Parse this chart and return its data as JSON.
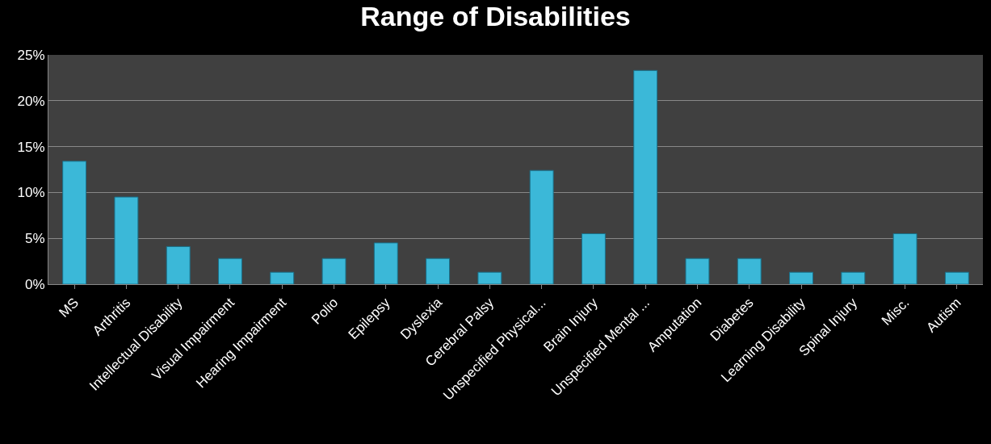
{
  "chart_data": {
    "type": "bar",
    "title": "Range of Disabilities",
    "categories": [
      "MS",
      "Arthritis",
      "Intellectual Disability",
      "Visual Impairment",
      "Hearing Impairment",
      "Polio",
      "Epilepsy",
      "Dyslexia",
      "Cerebral Palsy",
      "Unspecified Physical...",
      "Brain Injury",
      "Unspecified Mental ...",
      "Amputation",
      "Diabetes",
      "Learning Disability",
      "Spinal Injury",
      "Misc.",
      "Autism"
    ],
    "values": [
      13.4,
      9.5,
      4.1,
      2.8,
      1.3,
      2.8,
      4.5,
      2.8,
      1.3,
      12.4,
      5.5,
      23.3,
      2.8,
      2.8,
      1.3,
      1.3,
      5.5,
      1.3
    ],
    "color": "#3bb8d8",
    "ylim": [
      0,
      25
    ],
    "yticks": [
      {
        "value": 0,
        "label": "0%"
      },
      {
        "value": 5,
        "label": "5%"
      },
      {
        "value": 10,
        "label": "10%"
      },
      {
        "value": 15,
        "label": "15%"
      },
      {
        "value": 20,
        "label": "20%"
      },
      {
        "value": 25,
        "label": "25%"
      }
    ],
    "grid": "y"
  }
}
